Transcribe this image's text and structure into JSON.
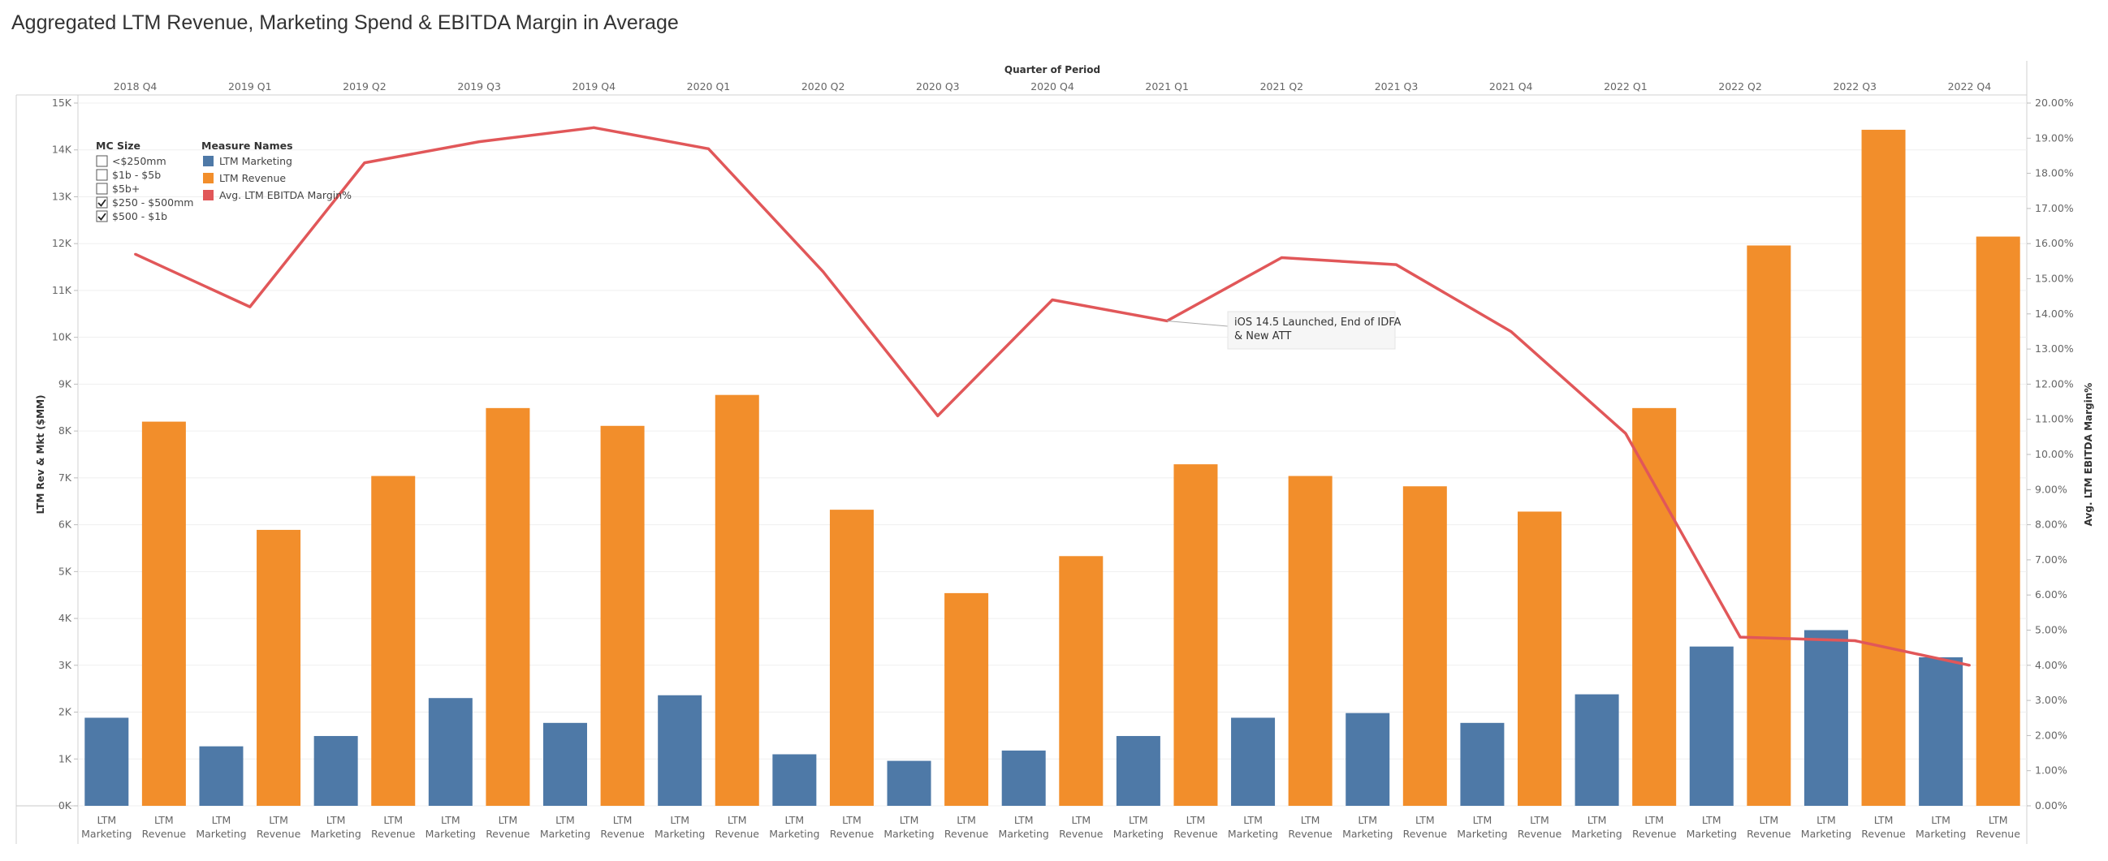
{
  "title": "Aggregated LTM Revenue, Marketing Spend & EBITDA Margin in Average",
  "chart_data": {
    "type": "bar",
    "column_header_title": "Quarter of Period",
    "quarters": [
      "2018 Q4",
      "2019 Q1",
      "2019 Q2",
      "2019 Q3",
      "2019 Q4",
      "2020 Q1",
      "2020 Q2",
      "2020 Q3",
      "2020 Q4",
      "2021 Q1",
      "2021 Q2",
      "2021 Q3",
      "2021 Q4",
      "2022 Q1",
      "2022 Q2",
      "2022 Q3",
      "2022 Q4"
    ],
    "bar_labels": {
      "marketing": [
        "LTM",
        "Marketing"
      ],
      "revenue": [
        "LTM",
        "Revenue"
      ]
    },
    "series": [
      {
        "name": "LTM Marketing",
        "color": "#4e79a7",
        "values": [
          1880,
          1270,
          1490,
          2300,
          1770,
          2360,
          1100,
          960,
          1180,
          1490,
          1880,
          1980,
          1770,
          2380,
          3400,
          3750,
          3170
        ]
      },
      {
        "name": "LTM Revenue",
        "color": "#f28e2b",
        "values": [
          8200,
          5890,
          7040,
          8490,
          8110,
          8770,
          6320,
          4540,
          5330,
          7290,
          7040,
          6820,
          6280,
          8490,
          11960,
          14430,
          12150
        ]
      },
      {
        "name": "Avg. LTM EBITDA Margin%",
        "color": "#e15759",
        "type": "line",
        "values": [
          15.7,
          14.2,
          18.3,
          18.9,
          19.3,
          18.7,
          15.2,
          11.1,
          14.4,
          13.8,
          15.6,
          15.4,
          13.5,
          10.6,
          4.8,
          4.7,
          4.0
        ]
      }
    ],
    "ylabel_left": "LTM Rev & Mkt ($MM)",
    "ylabel_right": "Avg. LTM EBITDA Margin%",
    "ylim_left": [
      0,
      15000
    ],
    "ylim_right": [
      0,
      20
    ],
    "left_ticks": [
      "0K",
      "1K",
      "2K",
      "3K",
      "4K",
      "5K",
      "6K",
      "7K",
      "8K",
      "9K",
      "10K",
      "11K",
      "12K",
      "13K",
      "14K",
      "15K"
    ],
    "right_ticks": [
      "0.00%",
      "1.00%",
      "2.00%",
      "3.00%",
      "4.00%",
      "5.00%",
      "6.00%",
      "7.00%",
      "8.00%",
      "9.00%",
      "10.00%",
      "11.00%",
      "12.00%",
      "13.00%",
      "14.00%",
      "15.00%",
      "16.00%",
      "17.00%",
      "18.00%",
      "19.00%",
      "20.00%"
    ],
    "grid": true,
    "legend_position": "top-left",
    "annotation": {
      "lines": [
        "iOS 14.5 Launched, End of IDFA",
        "& New ATT"
      ],
      "quarter": "2021 Q1"
    }
  },
  "filters": {
    "mc_size_title": "MC Size",
    "mc_size_options": [
      {
        "label": "<$250mm",
        "checked": false
      },
      {
        "label": "$1b - $5b",
        "checked": false
      },
      {
        "label": "$5b+",
        "checked": false
      },
      {
        "label": "$250 - $500mm",
        "checked": true
      },
      {
        "label": "$500 - $1b",
        "checked": true
      }
    ],
    "measure_title": "Measure Names",
    "measure_items": [
      {
        "label": "LTM Marketing",
        "color": "#4e79a7"
      },
      {
        "label": "LTM Revenue",
        "color": "#f28e2b"
      },
      {
        "label": "Avg. LTM EBITDA Margin%",
        "color": "#e15759"
      }
    ]
  }
}
